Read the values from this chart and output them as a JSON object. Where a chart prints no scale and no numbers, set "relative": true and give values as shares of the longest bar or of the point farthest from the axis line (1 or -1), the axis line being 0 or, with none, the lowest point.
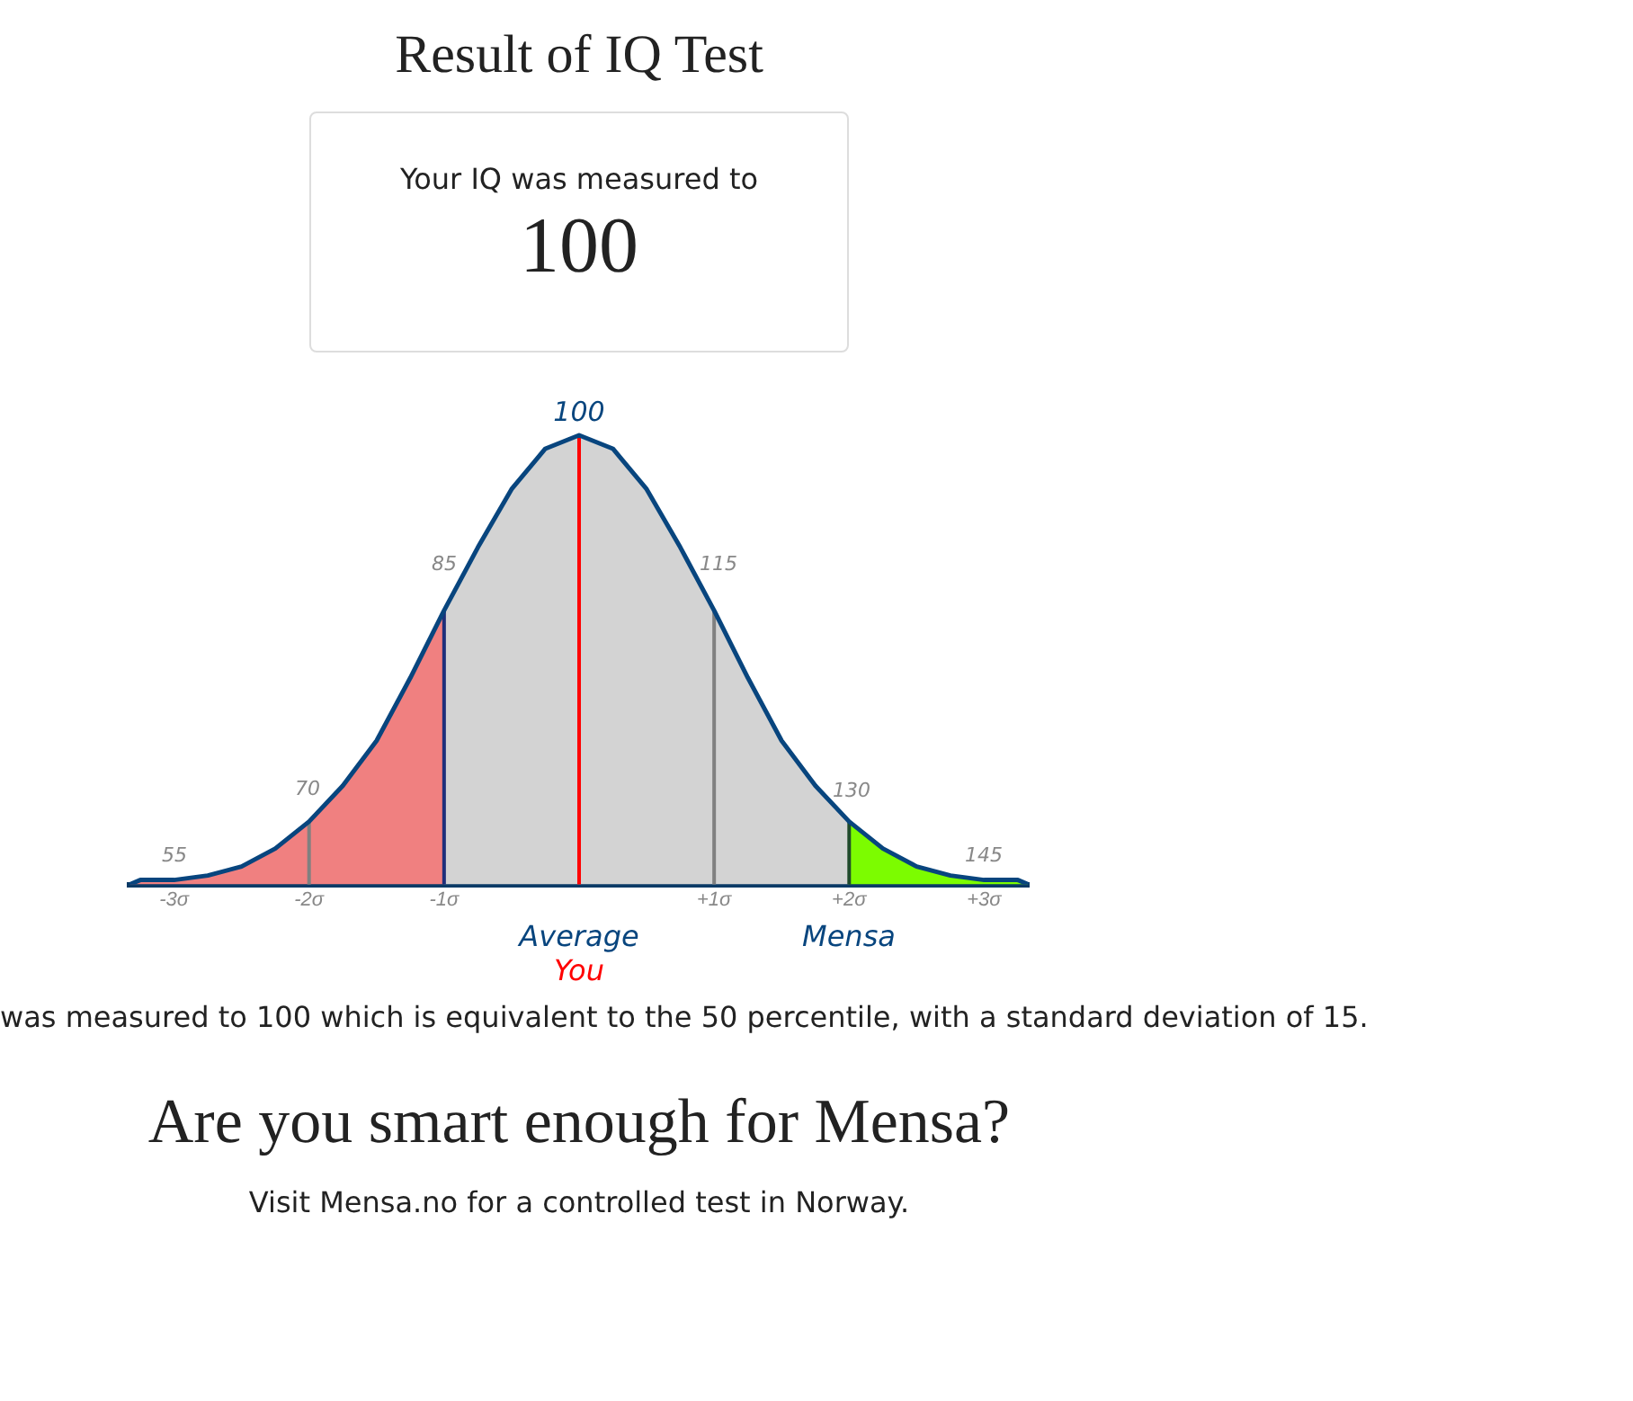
{
  "chart_data": {
    "type": "area",
    "title": "Result of IQ Test",
    "subtitle": "Your IQ was measured to",
    "relative": true,
    "legend": false,
    "grid": false,
    "marker": "none",
    "series": [
      {
        "type": "line",
        "color": "#08457e",
        "x": [
          -3.33,
          -3.25,
          -3,
          -2.75,
          -2.5,
          -2.25,
          -2,
          -1.75,
          -1.5,
          -1.25,
          -1,
          -0.75,
          -0.5,
          -0.25,
          0,
          0.25,
          0.5,
          0.75,
          1,
          1.25,
          1.5,
          1.75,
          2,
          2.25,
          2.5,
          2.75,
          3,
          3.25,
          3.33
        ],
        "values": [
          0,
          0.01,
          0.01,
          0.02,
          0.04,
          0.08,
          0.14,
          0.22,
          0.32,
          0.46,
          0.61,
          0.75,
          0.88,
          0.97,
          1,
          0.97,
          0.88,
          0.75,
          0.61,
          0.46,
          0.32,
          0.22,
          0.14,
          0.08,
          0.04,
          0.02,
          0.01,
          0.01,
          0
        ]
      },
      {
        "color": "#f08080",
        "x": [
          -3.33,
          -3.25,
          -3,
          -2.75,
          -2.5,
          -2.25,
          -2,
          -1.75,
          -1.5,
          -1.25,
          -1
        ],
        "values": [
          0,
          0.01,
          0.01,
          0.02,
          0.04,
          0.08,
          0.14,
          0.22,
          0.32,
          0.46,
          0.61
        ]
      },
      {
        "color": "#d3d3d3",
        "x": [
          -1,
          -0.75,
          -0.5,
          -0.25,
          0,
          0.25,
          0.5,
          0.75,
          1,
          1.25,
          1.5,
          1.75,
          2
        ],
        "values": [
          0.61,
          0.75,
          0.88,
          0.97,
          1,
          0.97,
          0.88,
          0.75,
          0.61,
          0.46,
          0.32,
          0.22,
          0.14
        ]
      },
      {
        "color": "#7cfc00",
        "x": [
          2,
          2.25,
          2.5,
          2.75,
          3,
          3.25,
          3.33
        ],
        "values": [
          0.14,
          0.08,
          0.04,
          0.02,
          0.01,
          0.01,
          0
        ]
      }
    ],
    "xlim": [
      -3.33,
      3.33
    ],
    "xticks": [
      {
        "value": -3,
        "label": "-3σ"
      },
      {
        "value": -2,
        "label": "-2σ"
      },
      {
        "value": -1,
        "label": "-1σ"
      },
      {
        "value": 1,
        "label": "+1σ"
      },
      {
        "value": 2,
        "label": "+2σ"
      },
      {
        "value": 3,
        "label": "+3σ"
      }
    ],
    "ref_lines": [
      {
        "axis": "x",
        "value": -2,
        "color": "#808080"
      },
      {
        "axis": "x",
        "value": -1,
        "color": "#1f2f7a"
      },
      {
        "axis": "x",
        "value": 0,
        "color": "#ff0000"
      },
      {
        "axis": "x",
        "value": 1,
        "color": "#808080"
      },
      {
        "axis": "x",
        "value": 2,
        "color": "#1f4a2a"
      }
    ],
    "annotations": [
      "100",
      "70",
      "85",
      "100",
      "115",
      "130",
      "55",
      "145",
      "Average",
      "You",
      "Mensa",
      "was measured to 100 which is equivalent to the 50 percentile, with a standard deviation of 15.",
      "Are you smart enough for Mensa?",
      "Visit Mensa.no for a controlled test in Norway."
    ]
  }
}
